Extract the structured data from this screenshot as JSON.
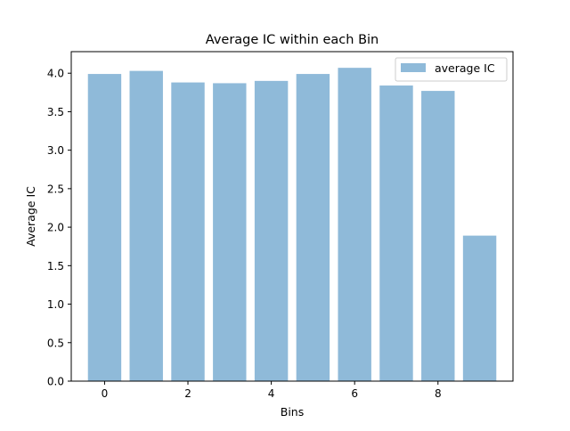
{
  "chart_data": {
    "type": "bar",
    "title": "Average IC within each Bin",
    "xlabel": "Bins",
    "ylabel": "Average IC",
    "categories": [
      0,
      1,
      2,
      3,
      4,
      5,
      6,
      7,
      8,
      9
    ],
    "series": [
      {
        "name": "average IC",
        "values": [
          3.99,
          4.03,
          3.88,
          3.87,
          3.9,
          3.99,
          4.07,
          3.84,
          3.77,
          1.89
        ]
      }
    ],
    "xlim": [
      -0.8,
      9.8
    ],
    "ylim": [
      0,
      4.28
    ],
    "xticks": [
      0,
      2,
      4,
      6,
      8
    ],
    "yticks": [
      0.0,
      0.5,
      1.0,
      1.5,
      2.0,
      2.5,
      3.0,
      3.5,
      4.0
    ],
    "ytick_format": "0.0",
    "bar_width": 0.8,
    "bar_color": "#8fbad9",
    "grid": false,
    "legend": {
      "position": "top-right",
      "entries": [
        "average IC"
      ]
    }
  }
}
